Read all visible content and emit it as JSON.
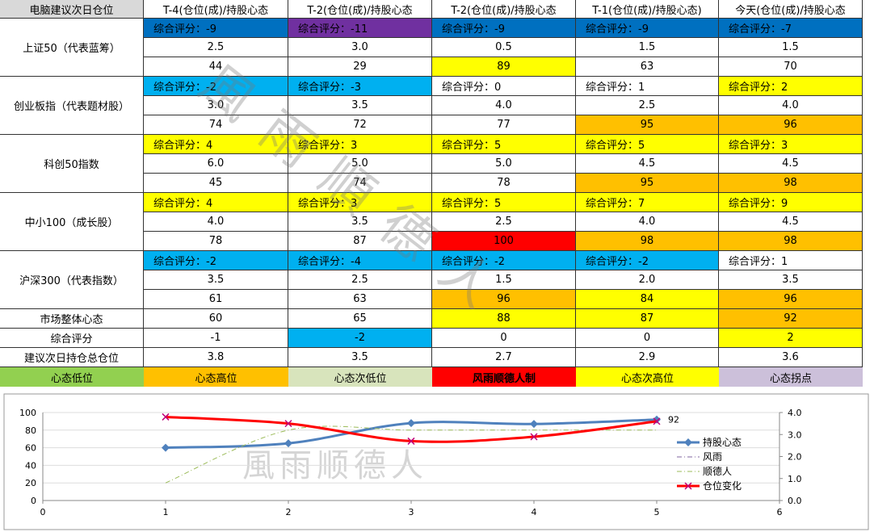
{
  "table": {
    "header": [
      "电脑建议次日仓位",
      "T-4(仓位(成)/持股心态",
      "T-2(仓位(成)/持股心态",
      "T-2(仓位(成)/持股心态",
      "T-1(仓位(成)/持股心态)",
      "今天(仓位(成)/持股心态"
    ],
    "groups": [
      {
        "name": "上证50（代表蓝筹）",
        "rows": [
          [
            "综合评分：-9",
            "综合评分：-11",
            "综合评分：-9",
            "综合评分：-9",
            "综合评分：-7"
          ],
          [
            "2.5",
            "3.0",
            "0.5",
            "1.5",
            "1.5"
          ],
          [
            "44",
            "29",
            "89",
            "63",
            "70"
          ]
        ],
        "fills": [
          [
            "#0070c0",
            "#7030a0",
            "#0070c0",
            "#0070c0",
            "#0070c0"
          ],
          [
            null,
            null,
            null,
            null,
            null
          ],
          [
            null,
            null,
            "#ffff00",
            null,
            null
          ]
        ]
      },
      {
        "name": "创业板指（代表题材股）",
        "rows": [
          [
            "综合评分：-2",
            "综合评分：-3",
            "综合评分：0",
            "综合评分：1",
            "综合评分：2"
          ],
          [
            "3.0",
            "3.5",
            "4.0",
            "2.5",
            "4.0"
          ],
          [
            "74",
            "72",
            "77",
            "95",
            "96"
          ]
        ],
        "fills": [
          [
            "#00b0f0",
            "#00b0f0",
            null,
            null,
            "#ffff00"
          ],
          [
            null,
            null,
            null,
            null,
            null
          ],
          [
            null,
            null,
            null,
            "#ffc000",
            "#ffc000"
          ]
        ]
      },
      {
        "name": "科创50指数",
        "rows": [
          [
            "综合评分：4",
            "综合评分：3",
            "综合评分：5",
            "综合评分：5",
            "综合评分：3"
          ],
          [
            "6.0",
            "5.0",
            "5.0",
            "4.5",
            "4.5"
          ],
          [
            "45",
            "74",
            "78",
            "95",
            "98"
          ]
        ],
        "fills": [
          [
            "#ffff00",
            "#ffff00",
            "#ffff00",
            "#ffff00",
            "#ffff00"
          ],
          [
            null,
            null,
            null,
            null,
            null
          ],
          [
            null,
            null,
            null,
            "#ffc000",
            "#ffc000"
          ]
        ]
      },
      {
        "name": "中小100（成长股）",
        "rows": [
          [
            "综合评分：4",
            "综合评分：3",
            "综合评分：5",
            "综合评分：7",
            "综合评分：9"
          ],
          [
            "4.0",
            "3.5",
            "2.5",
            "4.0",
            "4.5"
          ],
          [
            "78",
            "87",
            "100",
            "98",
            "98"
          ]
        ],
        "fills": [
          [
            "#ffff00",
            "#ffff00",
            "#ffff00",
            "#ffff00",
            "#ffff00"
          ],
          [
            null,
            null,
            null,
            null,
            null
          ],
          [
            null,
            null,
            "#ff0000",
            "#ffc000",
            "#ffc000"
          ]
        ]
      },
      {
        "name": "沪深300（代表指数）",
        "rows": [
          [
            "综合评分：-2",
            "综合评分：-4",
            "综合评分：-2",
            "综合评分：-2",
            "综合评分：1"
          ],
          [
            "3.5",
            "2.5",
            "1.5",
            "2.0",
            "3.5"
          ],
          [
            "61",
            "63",
            "96",
            "84",
            "96"
          ]
        ],
        "fills": [
          [
            "#00b0f0",
            "#00b0f0",
            "#00b0f0",
            "#00b0f0",
            null
          ],
          [
            null,
            null,
            null,
            null,
            null
          ],
          [
            null,
            null,
            "#ffc000",
            "#ffff00",
            "#ffc000"
          ]
        ]
      }
    ],
    "summary": [
      {
        "name": "市场整体心态",
        "values": [
          "60",
          "65",
          "88",
          "87",
          "92"
        ],
        "fills": [
          null,
          null,
          "#ffff00",
          "#ffff00",
          "#ffc000"
        ]
      },
      {
        "name": "综合评分",
        "values": [
          "-1",
          "-2",
          "0",
          "0",
          "2"
        ],
        "fills": [
          null,
          "#00b0f0",
          null,
          null,
          "#ffff00"
        ]
      },
      {
        "name": "建议次日持仓总仓位",
        "values": [
          "3.8",
          "3.5",
          "2.7",
          "2.9",
          "3.6"
        ],
        "fills": [
          null,
          null,
          null,
          null,
          null
        ]
      }
    ],
    "legend": [
      {
        "label": "心态低位",
        "color": "#92d050"
      },
      {
        "label": "心态高位",
        "color": "#ffc000"
      },
      {
        "label": "心态次低位",
        "color": "#d8e4bc"
      },
      {
        "label": "风雨顺德人制",
        "color": "#ff0000"
      },
      {
        "label": "心态次高位",
        "color": "#ffff00"
      },
      {
        "label": "心态拐点",
        "color": "#ccc0da"
      }
    ],
    "watermark": "風雨順德人"
  },
  "chart_data": {
    "type": "line",
    "watermark": "風雨顺德人",
    "x": [
      1,
      2,
      3,
      4,
      5
    ],
    "xlim": [
      0,
      6
    ],
    "xticks": [
      0,
      1,
      2,
      3,
      4,
      5,
      6
    ],
    "ylim": [
      0,
      100
    ],
    "yticks": [
      0,
      20,
      40,
      60,
      80,
      100
    ],
    "y2lim": [
      0,
      4
    ],
    "y2ticks": [
      {
        "value": 0,
        "label": "0.0"
      },
      {
        "value": 1,
        "label": "1.0"
      },
      {
        "value": 2,
        "label": "2.0"
      },
      {
        "value": 3,
        "label": "3.0"
      },
      {
        "value": 4,
        "label": "4.0"
      }
    ],
    "series": [
      {
        "name": "持股心态",
        "color": "#4f81bd",
        "values": [
          60,
          65,
          88,
          87,
          92
        ],
        "marker": "diamond",
        "value_labels": [
          null,
          null,
          null,
          null,
          "92"
        ]
      },
      {
        "name": "风雨",
        "color": "#8064a2",
        "values": [
          null,
          null,
          null,
          null,
          null
        ],
        "dash": "dashdot"
      },
      {
        "name": "顺德人",
        "color": "#9bbb59",
        "values": [
          20,
          80,
          80,
          80,
          80
        ],
        "dash": "dashdot"
      },
      {
        "name": "仓位变化",
        "color": "#ff0000",
        "values": [
          3.8,
          3.5,
          2.7,
          2.9,
          3.6
        ],
        "axis": "y2",
        "marker": "x"
      }
    ]
  }
}
